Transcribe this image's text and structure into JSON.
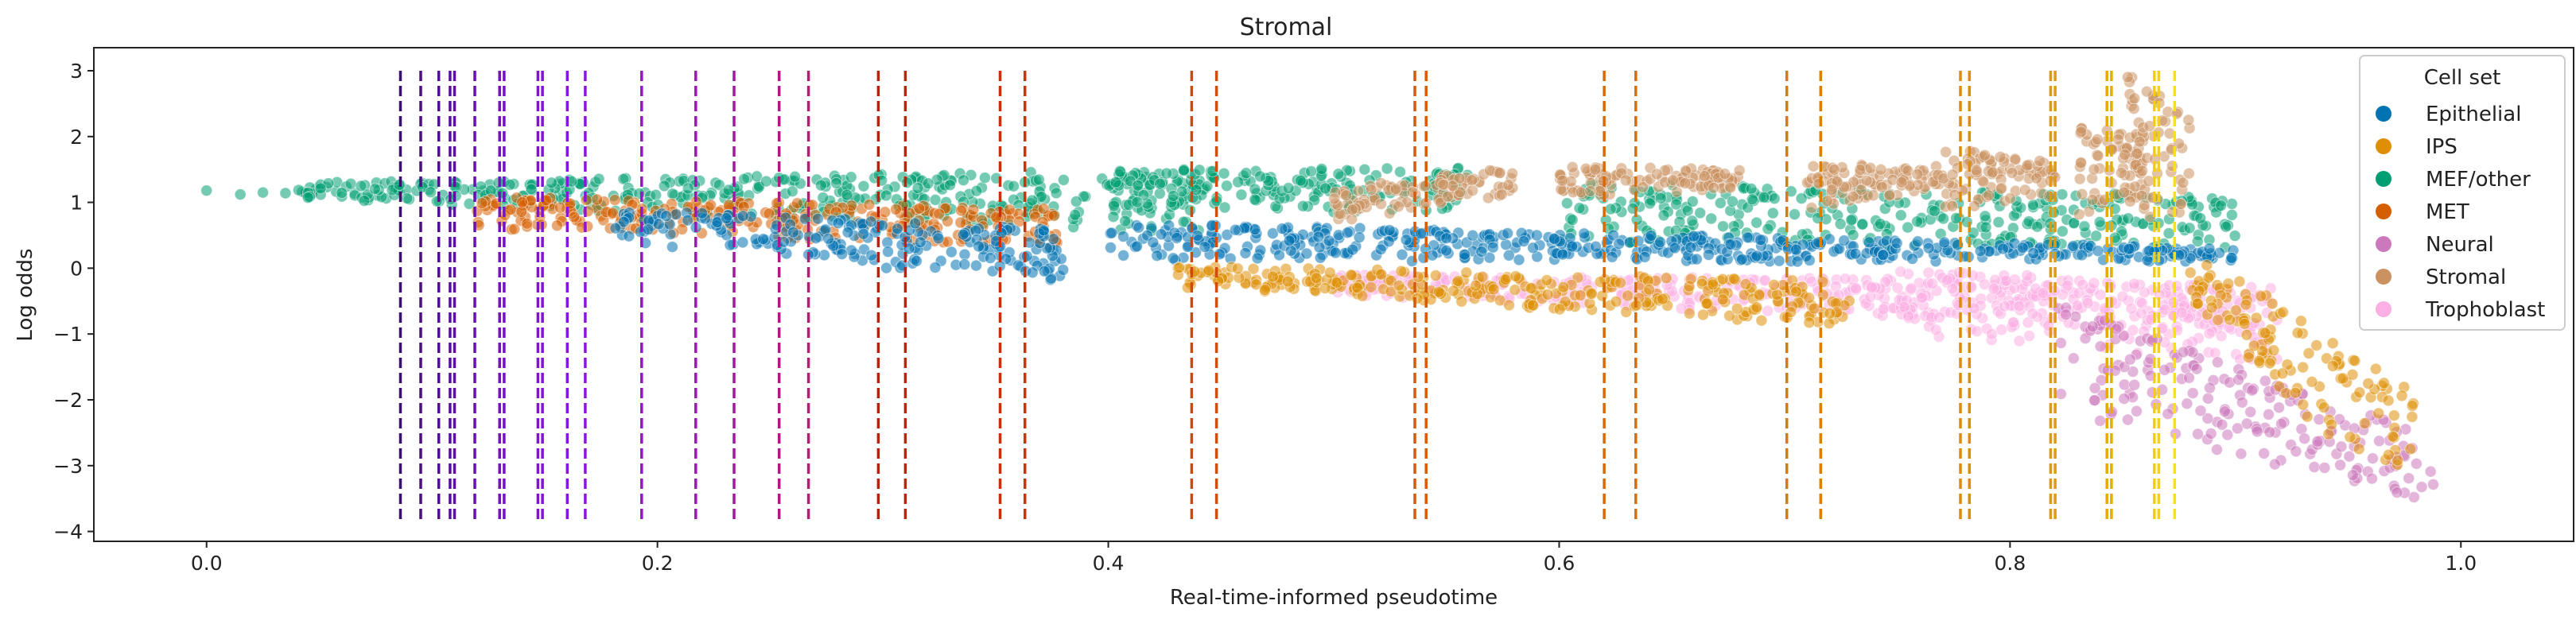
{
  "chart_data": {
    "type": "scatter",
    "title": "Stromal",
    "xlabel": "Real-time-informed pseudotime",
    "ylabel": "Log odds",
    "xlim": [
      -0.05,
      1.05
    ],
    "ylim": [
      -4.15,
      3.35
    ],
    "xticks": [
      0.0,
      0.2,
      0.4,
      0.6,
      0.8,
      1.0
    ],
    "xtick_labels": [
      "0.0",
      "0.2",
      "0.4",
      "0.6",
      "0.8",
      "1.0"
    ],
    "yticks": [
      -4,
      -3,
      -2,
      -1,
      0,
      1,
      2,
      3
    ],
    "ytick_labels": [
      "−4",
      "−3",
      "−2",
      "−1",
      "0",
      "1",
      "2",
      "3"
    ],
    "grid": false,
    "legend": {
      "title": "Cell set",
      "placement": "top-right",
      "entries": [
        {
          "name": "Epithelial",
          "color": "#0173b2"
        },
        {
          "name": "IPS",
          "color": "#de8f05"
        },
        {
          "name": "MEF/other",
          "color": "#029e73"
        },
        {
          "name": "MET",
          "color": "#d55e00"
        },
        {
          "name": "Neural",
          "color": "#cc78bc"
        },
        {
          "name": "Stromal",
          "color": "#ca9161"
        },
        {
          "name": "Trophoblast",
          "color": "#fbafe4"
        }
      ]
    },
    "vertical_lines": {
      "style": "dashed",
      "y_range": [
        -3.85,
        3.0
      ],
      "x": [
        0.086,
        0.095,
        0.103,
        0.108,
        0.11,
        0.119,
        0.13,
        0.132,
        0.147,
        0.149,
        0.16,
        0.168,
        0.193,
        0.217,
        0.234,
        0.254,
        0.267,
        0.298,
        0.31,
        0.352,
        0.363,
        0.437,
        0.448,
        0.536,
        0.541,
        0.62,
        0.634,
        0.701,
        0.716,
        0.778,
        0.782,
        0.818,
        0.82,
        0.843,
        0.845,
        0.864,
        0.866,
        0.873
      ],
      "colors": [
        "#3b0f6f",
        "#4a0f80",
        "#540f8f",
        "#5c0f9a",
        "#610fa0",
        "#6a0fb0",
        "#7311c0",
        "#7511c4",
        "#7f13d8",
        "#8113da",
        "#8a14dc",
        "#8f14d8",
        "#9414d0",
        "#a114b8",
        "#a814a4",
        "#b01888",
        "#b51c74",
        "#c21c12",
        "#c41f10",
        "#c8300c",
        "#ca340c",
        "#d2480a",
        "#d44c0a",
        "#d65a08",
        "#d65c08",
        "#d86a06",
        "#d86e06",
        "#da7a06",
        "#da7e06",
        "#dc8c06",
        "#dc8e06",
        "#e09a04",
        "#e09c04",
        "#e4ac02",
        "#e4ae02",
        "#f2d000",
        "#f4d400",
        "#f8e400"
      ]
    },
    "series": [
      {
        "name": "MEF/other",
        "color": "#029e73",
        "bands": [
          {
            "x": [
              0.04,
              0.45
            ],
            "y_top": [
              1.3,
              1.5
            ],
            "y_bottom": [
              1.05,
              0.5
            ]
          },
          {
            "x": [
              0.4,
              0.56
            ],
            "y_top": [
              1.5,
              1.55
            ],
            "y_bottom": [
              0.9,
              0.8
            ]
          },
          {
            "x": [
              0.6,
              0.9
            ],
            "y_top": [
              1.3,
              1.1
            ],
            "y_bottom": [
              0.4,
              0.3
            ]
          }
        ],
        "points": [
          [
            0.0,
            1.18
          ],
          [
            0.015,
            1.12
          ],
          [
            0.025,
            1.15
          ],
          [
            0.035,
            1.14
          ]
        ]
      },
      {
        "name": "MET",
        "color": "#d55e00",
        "bands": [
          {
            "x": [
              0.12,
              0.38
            ],
            "y_top": [
              1.1,
              0.9
            ],
            "y_bottom": [
              0.6,
              0.3
            ]
          }
        ]
      },
      {
        "name": "Epithelial",
        "color": "#0173b2",
        "bands": [
          {
            "x": [
              0.18,
              0.38
            ],
            "y_top": [
              0.9,
              0.6
            ],
            "y_bottom": [
              0.3,
              -0.2
            ]
          },
          {
            "x": [
              0.4,
              0.9
            ],
            "y_top": [
              0.7,
              0.3
            ],
            "y_bottom": [
              0.1,
              0.1
            ]
          }
        ]
      },
      {
        "name": "Stromal",
        "color": "#ca9161",
        "bands": [
          {
            "x": [
              0.5,
              0.58
            ],
            "y_top": [
              1.2,
              1.55
            ],
            "y_bottom": [
              0.7,
              1.1
            ]
          },
          {
            "x": [
              0.6,
              0.68
            ],
            "y_top": [
              1.55,
              1.5
            ],
            "y_bottom": [
              1.05,
              1.2
            ]
          },
          {
            "x": [
              0.71,
              0.77
            ],
            "y_top": [
              1.6,
              1.55
            ],
            "y_bottom": [
              0.9,
              1.2
            ]
          },
          {
            "x": [
              0.77,
              0.82
            ],
            "y_top": [
              1.85,
              1.6
            ],
            "y_bottom": [
              0.8,
              1.1
            ]
          },
          {
            "x": [
              0.83,
              0.86
            ],
            "y_top": [
              2.3,
              2.0
            ],
            "y_bottom": [
              0.8,
              1.0
            ]
          },
          {
            "x": [
              0.85,
              0.88
            ],
            "y_top": [
              3.0,
              2.3
            ],
            "y_bottom": [
              1.0,
              0.4
            ]
          }
        ]
      },
      {
        "name": "Trophoblast",
        "color": "#fbafe4",
        "bands": [
          {
            "x": [
              0.5,
              0.9
            ],
            "y_top": [
              -0.1,
              -0.2
            ],
            "y_bottom": [
              -0.4,
              -1.0
            ]
          },
          {
            "x": [
              0.75,
              0.92
            ],
            "y_top": [
              0.0,
              -0.3
            ],
            "y_bottom": [
              -1.0,
              -1.5
            ]
          }
        ]
      },
      {
        "name": "Neural",
        "color": "#cc78bc",
        "bands": [
          {
            "x": [
              0.82,
              0.99
            ],
            "y_top": [
              -0.5,
              -2.6
            ],
            "y_bottom": [
              -2.2,
              -3.6
            ]
          }
        ]
      },
      {
        "name": "IPS",
        "color": "#de8f05",
        "bands": [
          {
            "x": [
              0.88,
              0.98
            ],
            "y_top": [
              0.2,
              -1.6
            ],
            "y_bottom": [
              -0.6,
              -3.85
            ]
          },
          {
            "x": [
              0.43,
              0.73
            ],
            "y_top": [
              0.05,
              -0.2
            ],
            "y_bottom": [
              -0.3,
              -0.9
            ]
          }
        ]
      }
    ]
  }
}
